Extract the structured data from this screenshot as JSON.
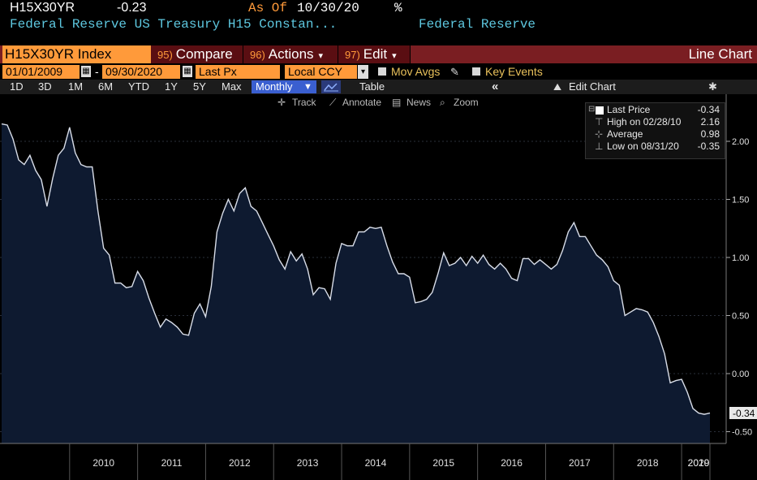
{
  "header": {
    "ticker": "H15X30YR",
    "last_value": "-0.23",
    "as_of_label": "As Of",
    "as_of_date": "10/30/20",
    "pct_icon": "%",
    "description": "Federal Reserve US Treasury H15 Constan...",
    "source": "Federal Reserve"
  },
  "toolbar": {
    "security": "H15X30YR Index",
    "compare_num": "95)",
    "compare": "Compare",
    "actions_num": "96)",
    "actions": "Actions",
    "edit_num": "97)",
    "edit": "Edit",
    "chart_type": "Line Chart"
  },
  "settings": {
    "start_date": "01/01/2009",
    "dash": "-",
    "end_date": "09/30/2020",
    "field": "Last Px",
    "currency": "Local CCY",
    "mov_avgs": "Mov Avgs",
    "key_events": "Key Events"
  },
  "periods": {
    "items": [
      "1D",
      "3D",
      "1M",
      "6M",
      "YTD",
      "1Y",
      "5Y",
      "Max"
    ],
    "frequency": "Monthly",
    "table": "Table",
    "collapse": "«",
    "edit_chart": "Edit Chart"
  },
  "tools": {
    "track": "Track",
    "annotate": "Annotate",
    "news": "News",
    "zoom": "Zoom"
  },
  "legend": {
    "last_price_label": "Last Price",
    "last_price_value": "-0.34",
    "high_label": "High on 02/28/10",
    "high_value": "2.16",
    "average_label": "Average",
    "average_value": "0.98",
    "low_label": "Low on 08/31/20",
    "low_value": "-0.35"
  },
  "colors": {
    "accent_orange": "#ff9a3a",
    "toolbar_red": "#7a1e22",
    "field_yellow": "#e8c05a",
    "line": "#d8dde8",
    "fill": "#0e1a30"
  },
  "chart_data": {
    "type": "area",
    "ylim": [
      -0.5,
      2.2
    ],
    "yticks": [
      "2.00",
      "1.50",
      "1.00",
      "0.50",
      "0.00",
      "-0.50"
    ],
    "ytick_values": [
      2.0,
      1.5,
      1.0,
      0.5,
      0.0,
      -0.5
    ],
    "xticks": [
      "2010",
      "2011",
      "2012",
      "2013",
      "2014",
      "2015",
      "2016",
      "2017",
      "2018",
      "2019",
      "2020"
    ],
    "last_label": "-0.34",
    "x_start": "2009-01",
    "series": [
      {
        "values": [
          2.15,
          2.14,
          2.02,
          1.84,
          1.8,
          1.88,
          1.75,
          1.67,
          1.44,
          1.68,
          1.88,
          1.94,
          2.12,
          1.9,
          1.8,
          1.78,
          1.78,
          1.4,
          1.08,
          1.02,
          0.78,
          0.78,
          0.74,
          0.75,
          0.88,
          0.8,
          0.65,
          0.52,
          0.4,
          0.47,
          0.44,
          0.4,
          0.34,
          0.33,
          0.52,
          0.6,
          0.49,
          0.75,
          1.22,
          1.38,
          1.5,
          1.4,
          1.55,
          1.6,
          1.44,
          1.4,
          1.3,
          1.2,
          1.1,
          0.98,
          0.9,
          1.05,
          0.97,
          1.03,
          0.9,
          0.68,
          0.74,
          0.73,
          0.64,
          0.95,
          1.12,
          1.1,
          1.1,
          1.22,
          1.22,
          1.26,
          1.25,
          1.26,
          1.1,
          0.96,
          0.86,
          0.86,
          0.83,
          0.61,
          0.62,
          0.64,
          0.7,
          0.86,
          1.04,
          0.93,
          0.95,
          1.0,
          0.93,
          1.01,
          0.95,
          1.02,
          0.94,
          0.9,
          0.95,
          0.9,
          0.82,
          0.8,
          0.99,
          0.99,
          0.94,
          0.98,
          0.94,
          0.9,
          0.94,
          1.06,
          1.22,
          1.3,
          1.18,
          1.18,
          1.1,
          1.02,
          0.98,
          0.92,
          0.8,
          0.76,
          0.5,
          0.53,
          0.56,
          0.55,
          0.53,
          0.44,
          0.32,
          0.17,
          -0.08,
          -0.06,
          -0.05,
          -0.16,
          -0.3,
          -0.34,
          -0.35,
          -0.34
        ]
      }
    ]
  }
}
